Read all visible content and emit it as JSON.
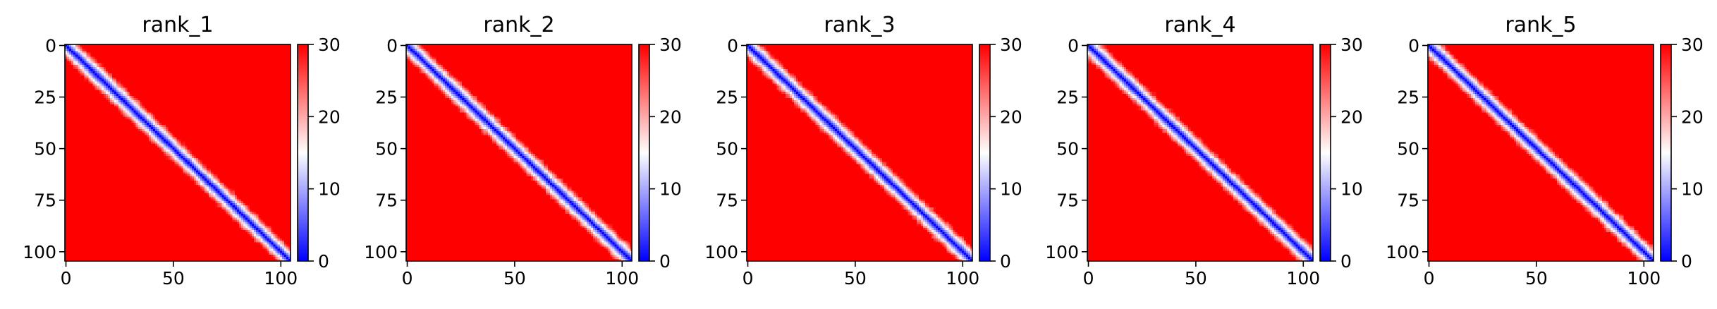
{
  "chart_data": {
    "type": "heatmap",
    "panels": [
      {
        "title": "rank_1",
        "variant": 1
      },
      {
        "title": "rank_2",
        "variant": 2
      },
      {
        "title": "rank_3",
        "variant": 3
      },
      {
        "title": "rank_4",
        "variant": 4
      },
      {
        "title": "rank_5",
        "variant": 5
      }
    ],
    "matrix_size": 105,
    "x_range": [
      -0.5,
      104.5
    ],
    "y_range": [
      104.5,
      -0.5
    ],
    "x_ticks": [
      0,
      50,
      100
    ],
    "y_ticks": [
      0,
      25,
      50,
      75,
      100
    ],
    "colorbar": {
      "min": 0,
      "max": 30,
      "ticks": [
        0,
        10,
        20,
        30
      ]
    },
    "colormap": "bwr",
    "colormap_colors": {
      "low": "#0000ff",
      "mid": "#ffffff",
      "high": "#ff0000"
    },
    "value_description": "pairwise distance matrix; near 0 along the main diagonal, rising to saturation (30) away from it"
  }
}
